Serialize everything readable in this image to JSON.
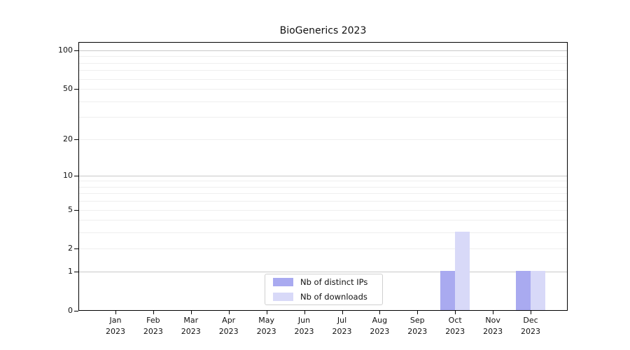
{
  "figure": {
    "background": "#ffffff",
    "text_color": "#111111"
  },
  "chart_data": {
    "type": "bar",
    "title": "BioGenerics 2023",
    "categories": [
      "Jan 2023",
      "Feb 2023",
      "Mar 2023",
      "Apr 2023",
      "May 2023",
      "Jun 2023",
      "Jul 2023",
      "Aug 2023",
      "Sep 2023",
      "Oct 2023",
      "Nov 2023",
      "Dec 2023"
    ],
    "series": [
      {
        "name": "Nb of distinct IPs",
        "color": "#a9aaf0",
        "values": [
          0,
          0,
          0,
          0,
          0,
          0,
          0,
          0,
          0,
          1,
          0,
          1
        ]
      },
      {
        "name": "Nb of downloads",
        "color": "#d8d9f8",
        "values": [
          0,
          0,
          0,
          0,
          0,
          0,
          0,
          0,
          0,
          3,
          0,
          1
        ]
      }
    ],
    "xlabel": "",
    "ylabel": "",
    "yscale": "symlog (ln(1+x))",
    "ylim": [
      0,
      116
    ],
    "yticks": [
      0,
      1,
      2,
      5,
      10,
      20,
      50,
      100
    ],
    "grid": "horizontal; major lines at 1, 10, 100; minor lines at 2-9 and 20-90",
    "grid_major_values": [
      1,
      10,
      100
    ],
    "grid_minor_values": [
      2,
      3,
      4,
      5,
      6,
      7,
      8,
      9,
      20,
      30,
      40,
      50,
      60,
      70,
      80,
      90
    ],
    "grid_major_color": "#c9c9c9",
    "grid_minor_color": "#efefef",
    "spine_color": "#000000",
    "legend_position": "lower center"
  }
}
